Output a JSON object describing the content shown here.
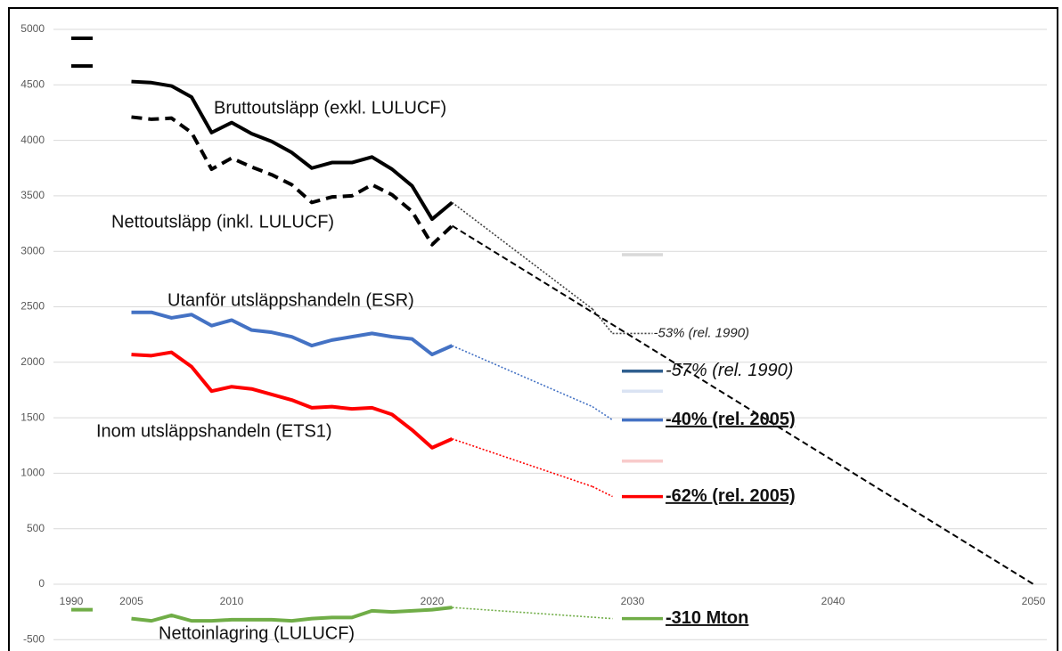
{
  "chart_data": {
    "type": "line",
    "categories": [
      "1990",
      null,
      null,
      "2005",
      null,
      null,
      null,
      null,
      "2010",
      null,
      null,
      null,
      null,
      null,
      null,
      null,
      null,
      null,
      "2020",
      null,
      null,
      null,
      null,
      null,
      null,
      null,
      null,
      null,
      "2030",
      null,
      null,
      null,
      null,
      null,
      null,
      null,
      null,
      null,
      "2040",
      null,
      null,
      null,
      null,
      null,
      null,
      null,
      null,
      null,
      "2050"
    ],
    "ylim": [
      -600,
      5100
    ],
    "yticks": [
      -500,
      0,
      500,
      1000,
      1500,
      2000,
      2500,
      3000,
      3500,
      4000,
      4500,
      5000
    ],
    "grid": true,
    "series": [
      {
        "name": "Bruttoutsläpp (exkl. LULUCF)",
        "color": "#000000",
        "dash": "solid",
        "values": [
          4920,
          null,
          null,
          4530,
          4520,
          4490,
          4390,
          4070,
          4160,
          4060,
          3990,
          3890,
          3750,
          3800,
          3800,
          3850,
          3740,
          3590,
          3290,
          3440,
          null,
          null,
          null,
          null,
          null,
          null,
          null,
          null,
          null,
          null,
          null,
          null,
          null,
          null,
          null,
          null,
          null,
          null,
          null,
          null,
          null,
          null,
          null,
          null,
          null,
          null,
          null,
          null,
          null
        ],
        "projection_color": "#404040",
        "projection_dash": "dotted",
        "projection": [
          null,
          null,
          null,
          null,
          null,
          null,
          null,
          null,
          null,
          null,
          null,
          null,
          null,
          null,
          null,
          null,
          null,
          null,
          null,
          3440,
          null,
          null,
          null,
          null,
          null,
          null,
          2480,
          2260,
          null,
          2260,
          null,
          null,
          null,
          null,
          null,
          null,
          null,
          null,
          null,
          null,
          null,
          null,
          null,
          null,
          null,
          null,
          null,
          null,
          null
        ],
        "end_label": "-53% (rel. 1990)"
      },
      {
        "name": "Nettoutsläpp (inkl. LULUCF)",
        "color": "#000000",
        "dash": "dashed",
        "values": [
          4670,
          null,
          null,
          4210,
          4190,
          4200,
          4070,
          3740,
          3840,
          3760,
          3690,
          3600,
          3440,
          3490,
          3500,
          3600,
          3510,
          3360,
          3060,
          3230,
          null,
          null,
          null,
          null,
          null,
          null,
          null,
          null,
          null,
          null,
          null,
          null,
          null,
          null,
          null,
          null,
          null,
          null,
          null,
          null,
          null,
          null,
          null,
          null,
          null,
          null,
          null,
          null,
          null
        ],
        "projection_color": "#000000",
        "projection_dash": "dashed",
        "projection": [
          null,
          null,
          null,
          null,
          null,
          null,
          null,
          null,
          null,
          null,
          null,
          null,
          null,
          null,
          null,
          null,
          null,
          null,
          null,
          3230,
          null,
          null,
          null,
          null,
          null,
          null,
          null,
          null,
          null,
          null,
          null,
          null,
          null,
          null,
          null,
          null,
          null,
          null,
          null,
          null,
          null,
          null,
          null,
          null,
          null,
          null,
          null,
          null,
          0
        ]
      },
      {
        "name": "Utanför utsläppshandeln (ESR)",
        "color": "#4472c4",
        "dash": "solid",
        "values": [
          null,
          null,
          null,
          2450,
          2450,
          2400,
          2430,
          2330,
          2380,
          2290,
          2270,
          2230,
          2150,
          2200,
          2230,
          2260,
          2230,
          2210,
          2070,
          2150,
          null,
          null,
          null,
          null,
          null,
          null,
          null,
          null,
          null,
          null,
          null,
          null,
          null,
          null,
          null,
          null,
          null,
          null,
          null,
          null,
          null,
          null,
          null,
          null,
          null,
          null,
          null,
          null,
          null
        ],
        "projection_color": "#4472c4",
        "projection_dash": "dotted",
        "projection": [
          null,
          null,
          null,
          null,
          null,
          null,
          null,
          null,
          null,
          null,
          null,
          null,
          null,
          null,
          null,
          null,
          null,
          null,
          null,
          2150,
          null,
          null,
          null,
          null,
          null,
          null,
          1600,
          1480,
          null,
          null,
          null,
          null,
          null,
          null,
          null,
          null,
          null,
          null,
          null,
          null,
          null,
          null,
          null,
          null,
          null,
          null,
          null,
          null,
          null
        ]
      },
      {
        "name": "Inom utsläppshandeln (ETS1)",
        "color": "#ff0000",
        "dash": "solid",
        "values": [
          null,
          null,
          null,
          2070,
          2060,
          2090,
          1960,
          1740,
          1780,
          1760,
          1710,
          1660,
          1590,
          1600,
          1580,
          1590,
          1530,
          1390,
          1230,
          1310,
          null,
          null,
          null,
          null,
          null,
          null,
          null,
          null,
          null,
          null,
          null,
          null,
          null,
          null,
          null,
          null,
          null,
          null,
          null,
          null,
          null,
          null,
          null,
          null,
          null,
          null,
          null,
          null,
          null
        ],
        "projection_color": "#ff0000",
        "projection_dash": "dotted",
        "projection": [
          null,
          null,
          null,
          null,
          null,
          null,
          null,
          null,
          null,
          null,
          null,
          null,
          null,
          null,
          null,
          null,
          null,
          null,
          null,
          1310,
          null,
          null,
          null,
          null,
          null,
          null,
          880,
          790,
          null,
          null,
          null,
          null,
          null,
          null,
          null,
          null,
          null,
          null,
          null,
          null,
          null,
          null,
          null,
          null,
          null,
          null,
          null,
          null,
          null
        ]
      },
      {
        "name": "Nettoinlagring (LULUCF)",
        "color": "#70ad47",
        "dash": "solid",
        "values": [
          -230,
          null,
          null,
          -310,
          -330,
          -280,
          -330,
          -330,
          -320,
          -320,
          -320,
          -330,
          -310,
          -300,
          -300,
          -240,
          -250,
          -240,
          -230,
          -210,
          null,
          null,
          null,
          null,
          null,
          null,
          null,
          null,
          null,
          null,
          null,
          null,
          null,
          null,
          null,
          null,
          null,
          null,
          null,
          null,
          null,
          null,
          null,
          null,
          null,
          null,
          null,
          null,
          null
        ],
        "projection_color": "#70ad47",
        "projection_dash": "dotted",
        "projection": [
          null,
          null,
          null,
          null,
          null,
          null,
          null,
          null,
          null,
          null,
          null,
          null,
          null,
          null,
          null,
          null,
          null,
          null,
          null,
          -210,
          null,
          null,
          null,
          null,
          null,
          null,
          null,
          -310,
          null,
          null,
          null,
          null,
          null,
          null,
          null,
          null,
          null,
          null,
          null,
          null,
          null,
          null,
          null,
          null,
          null,
          null,
          null,
          null,
          null
        ]
      }
    ],
    "target_category": "2030",
    "targets": [
      {
        "value": 2970,
        "color": "#d9d9d9"
      },
      {
        "value": 1920,
        "color": "#2f5f8f",
        "label": "-57% (rel. 1990)",
        "style": "italic"
      },
      {
        "value": 1740,
        "color": "#dae3f3"
      },
      {
        "value": 1480,
        "color": "#4472c4",
        "label": "-40% (rel. 2005)",
        "style": "bold"
      },
      {
        "value": 1110,
        "color": "#f8cbcb"
      },
      {
        "value": 790,
        "color": "#ff0000",
        "label": "-62% (rel. 2005)",
        "style": "bold"
      },
      {
        "value": -310,
        "color": "#70ad47",
        "label": "-310 Mton",
        "style": "bold"
      }
    ]
  }
}
